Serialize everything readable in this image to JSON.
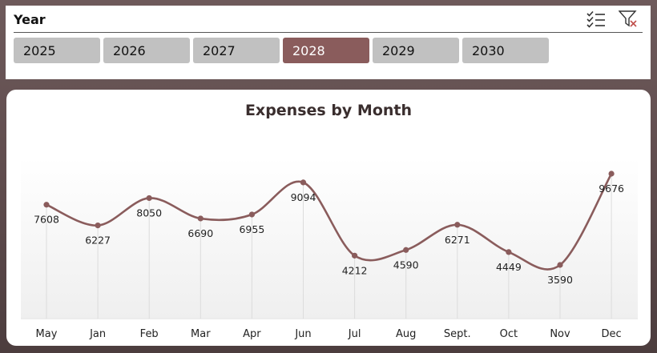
{
  "slicer": {
    "title": "Year",
    "years": [
      "2025",
      "2026",
      "2027",
      "2028",
      "2029",
      "2030"
    ],
    "selected": "2028",
    "icons": [
      "multi-select-icon",
      "clear-filter-icon"
    ]
  },
  "chart_data": {
    "type": "line",
    "title": "Expenses by Month",
    "categories": [
      "May",
      "Jan",
      "Feb",
      "Mar",
      "Apr",
      "Jun",
      "Jul",
      "Aug",
      "Sept.",
      "Oct",
      "Nov",
      "Dec"
    ],
    "values": [
      7608,
      6227,
      8050,
      6690,
      6955,
      9094,
      4212,
      4590,
      6271,
      4449,
      3590,
      9676
    ],
    "xlabel": "",
    "ylabel": "",
    "grid": false,
    "line_color": "#8a5c5c"
  }
}
